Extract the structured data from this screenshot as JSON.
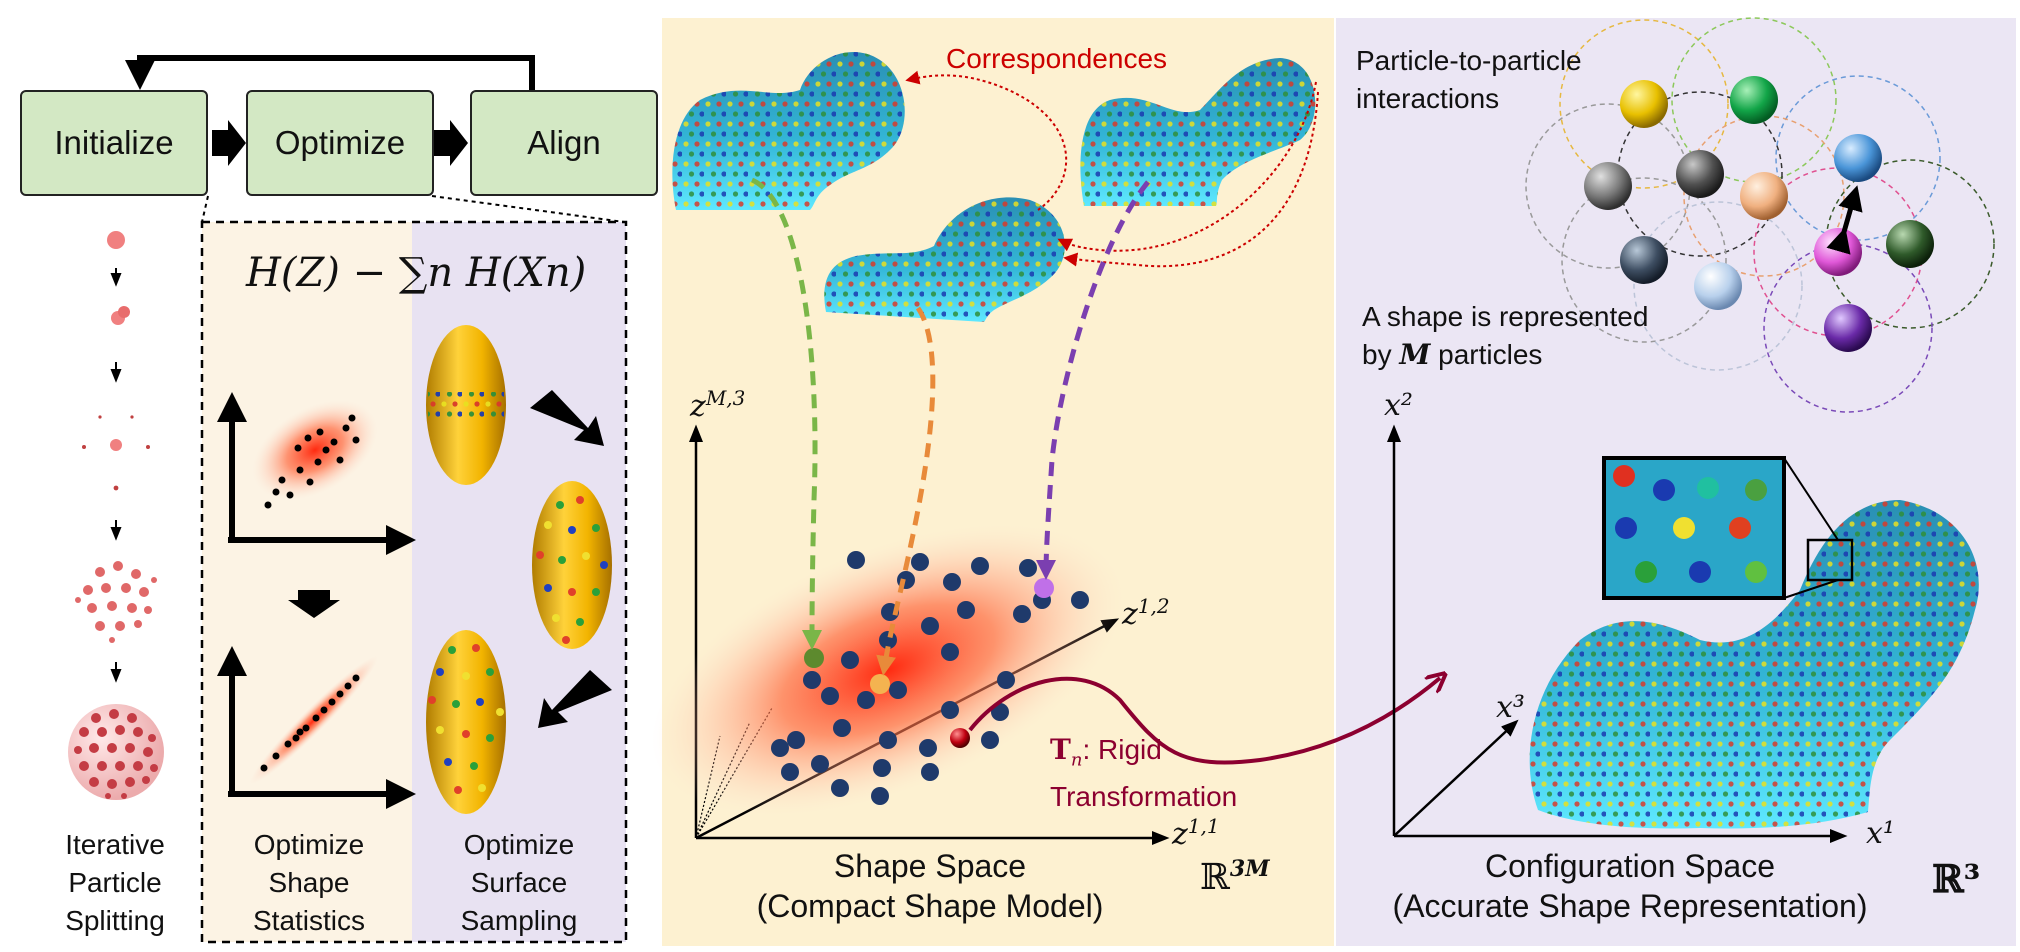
{
  "pipeline": {
    "initialize": "Initialize",
    "optimize": "Optimize",
    "align": "Align"
  },
  "left_panel": {
    "caption_line1": "Iterative",
    "caption_line2": "Particle",
    "caption_line3": "Splitting"
  },
  "objective": {
    "formula": "H(Z) − ∑n H(Xn)"
  },
  "shape_statistics": {
    "line1": "Optimize",
    "line2": "Shape",
    "line3": "Statistics"
  },
  "surface_sampling": {
    "line1": "Optimize",
    "line2": "Surface",
    "line3": "Sampling"
  },
  "shape_space": {
    "correspondences": "Correspondences",
    "axis_z_m3": "z^{M,3}",
    "axis_z12": "z^{1,2}",
    "axis_z11": "z^{1,1}",
    "title_line1": "Shape Space",
    "title_line2": "(Compact Shape Model)",
    "space_symbol": "ℝ^{3M}",
    "transform_symbol": "T_n",
    "transform_line1": ": Rigid",
    "transform_line2": "Transformation"
  },
  "config_space": {
    "interactions_line1": "Particle-to-particle",
    "interactions_line2": "interactions",
    "represented_line1": "A shape is represented",
    "represented_line2_pre": "by ",
    "represented_M": "M",
    "represented_line2_post": " particles",
    "axis_x2": "x²",
    "axis_x3": "x³",
    "axis_x1": "x¹",
    "title_line1": "Configuration Space",
    "title_line2": "(Accurate Shape Representation)",
    "space_symbol": "ℝ³"
  },
  "colors": {
    "box_fill": "#d3e8c4",
    "shape_space_bg": "#fdf1d1",
    "config_space_bg": "#ebe6f4",
    "stats_bg": "#fcf3e4",
    "sampling_bg": "#e8e2f2",
    "correspondence_red": "#cc0000",
    "transform_maroon": "#8c0030",
    "green_arrow": "#7ab648",
    "orange_arrow": "#e88a3a",
    "purple_arrow": "#7b3fb0"
  }
}
